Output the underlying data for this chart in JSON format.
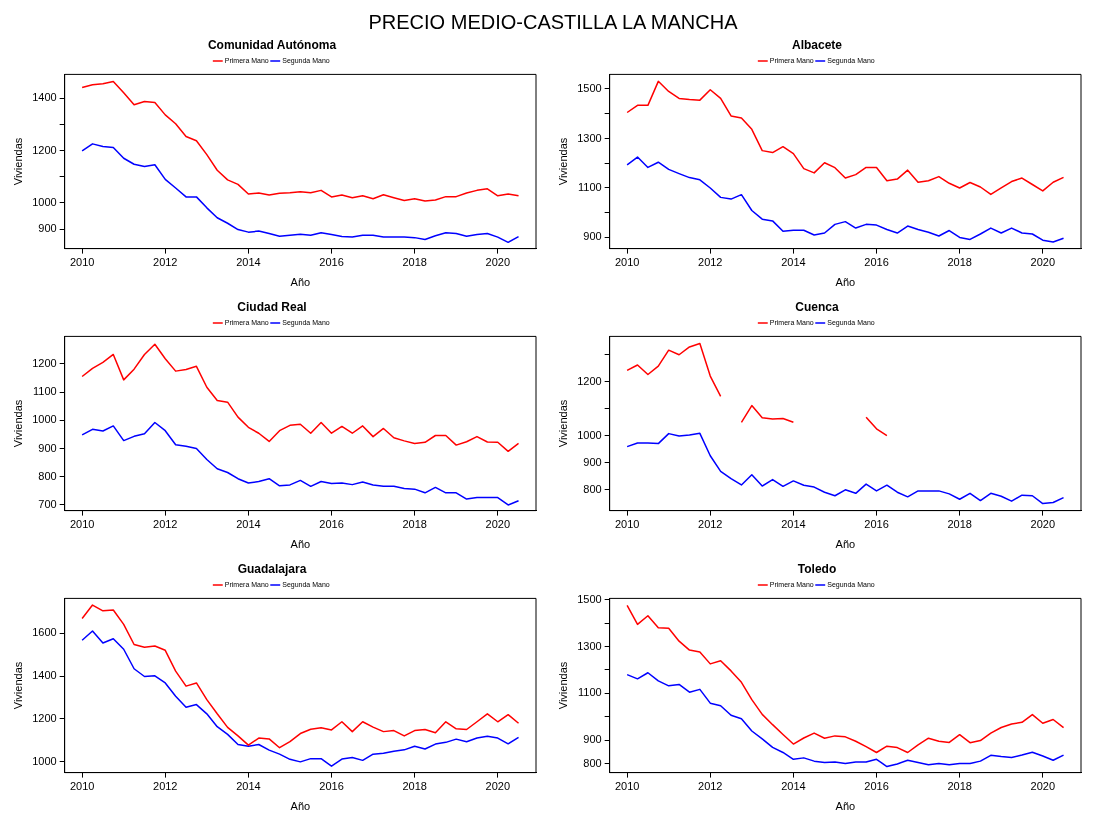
{
  "chart_data": [
    {
      "type": "line",
      "title": "Comunidad Autónoma",
      "xlabel": "Año",
      "ylabel": "Viviendas",
      "annotations": [
        "PRECIO MEDIO-CASTILLA LA MANCHA"
      ],
      "legend": "top",
      "grid": false,
      "line_style": "solid",
      "x": [
        2010,
        2010.25,
        2010.5,
        2010.75,
        2011,
        2011.25,
        2011.5,
        2011.75,
        2012,
        2012.25,
        2012.5,
        2012.75,
        2013,
        2013.25,
        2013.5,
        2013.75,
        2014,
        2014.25,
        2014.5,
        2014.75,
        2015,
        2015.25,
        2015.5,
        2015.75,
        2016,
        2016.25,
        2016.5,
        2016.75,
        2017,
        2017.25,
        2017.5,
        2017.75,
        2018,
        2018.25,
        2018.5,
        2018.75,
        2019,
        2019.25,
        2019.5,
        2019.75,
        2020,
        2020.25,
        2020.5
      ],
      "xlim": [
        2009.58,
        2020.92
      ],
      "xticks": [
        2010,
        2012,
        2014,
        2016,
        2018,
        2020
      ],
      "ylim": [
        825,
        1492
      ],
      "yticks": [
        900,
        1000,
        {
          "value": 1100,
          "label": null
        },
        1200,
        {
          "value": 1300,
          "label": null
        },
        1400
      ],
      "series": [
        {
          "name": "Primera Mano",
          "color": "#ff0000",
          "values": [
            1442,
            1452,
            1456,
            1465,
            1422,
            1376,
            1388,
            1384,
            1337,
            1303,
            1254,
            1238,
            1185,
            1125,
            1088,
            1071,
            1034,
            1038,
            1030,
            1037,
            1039,
            1043,
            1039,
            1048,
            1023,
            1030,
            1020,
            1027,
            1016,
            1031,
            1020,
            1009,
            1016,
            1007,
            1011,
            1024,
            1024,
            1038,
            1048,
            1054,
            1027,
            1034,
            1027
          ]
        },
        {
          "name": "Segunda Mano",
          "color": "#0000ff",
          "values": [
            1199,
            1226,
            1216,
            1212,
            1171,
            1148,
            1139,
            1146,
            1090,
            1057,
            1023,
            1023,
            981,
            943,
            922,
            898,
            888,
            892,
            883,
            872,
            876,
            880,
            876,
            886,
            879,
            871,
            869,
            876,
            876,
            869,
            869,
            869,
            867,
            860,
            874,
            886,
            883,
            872,
            879,
            883,
            869,
            849,
            871
          ]
        }
      ]
    },
    {
      "type": "line",
      "title": "Albacete",
      "xlabel": "Año",
      "ylabel": "Viviendas",
      "legend": "top",
      "grid": false,
      "line_style": "solid",
      "x": [
        2010,
        2010.25,
        2010.5,
        2010.75,
        2011,
        2011.25,
        2011.5,
        2011.75,
        2012,
        2012.25,
        2012.5,
        2012.75,
        2013,
        2013.25,
        2013.5,
        2013.75,
        2014,
        2014.25,
        2014.5,
        2014.75,
        2015,
        2015.25,
        2015.5,
        2015.75,
        2016,
        2016.25,
        2016.5,
        2016.75,
        2017,
        2017.25,
        2017.5,
        2017.75,
        2018,
        2018.25,
        2018.5,
        2018.75,
        2019,
        2019.25,
        2019.5,
        2019.75,
        2020,
        2020.25,
        2020.5
      ],
      "xlim": [
        2009.58,
        2020.92
      ],
      "xticks": [
        2010,
        2012,
        2014,
        2016,
        2018,
        2020
      ],
      "ylim": [
        855,
        1559
      ],
      "yticks": [
        900,
        {
          "value": 1000,
          "label": null
        },
        1100,
        {
          "value": 1200,
          "label": null
        },
        1300,
        {
          "value": 1400,
          "label": null
        },
        1500
      ],
      "series": [
        {
          "name": "Primera Mano",
          "color": "#ff0000",
          "values": [
            1405,
            1434,
            1434,
            1531,
            1490,
            1462,
            1458,
            1455,
            1497,
            1462,
            1391,
            1383,
            1337,
            1251,
            1243,
            1267,
            1239,
            1178,
            1161,
            1202,
            1182,
            1140,
            1154,
            1183,
            1183,
            1129,
            1136,
            1172,
            1123,
            1129,
            1146,
            1119,
            1100,
            1122,
            1104,
            1074,
            1100,
            1126,
            1140,
            1114,
            1088,
            1123,
            1143
          ]
        },
        {
          "name": "Segunda Mano",
          "color": "#0000ff",
          "values": [
            1193,
            1225,
            1183,
            1204,
            1175,
            1158,
            1142,
            1133,
            1100,
            1062,
            1055,
            1073,
            1009,
            974,
            967,
            925,
            929,
            929,
            910,
            918,
            953,
            964,
            938,
            953,
            950,
            932,
            918,
            946,
            932,
            921,
            906,
            928,
            900,
            892,
            914,
            938,
            918,
            938,
            918,
            914,
            889,
            882,
            897
          ]
        }
      ]
    },
    {
      "type": "line",
      "title": "Ciudad Real",
      "xlabel": "Año",
      "ylabel": "Viviendas",
      "legend": "top",
      "grid": false,
      "line_style": "solid",
      "x": [
        2010,
        2010.25,
        2010.5,
        2010.75,
        2011,
        2011.25,
        2011.5,
        2011.75,
        2012,
        2012.25,
        2012.5,
        2012.75,
        2013,
        2013.25,
        2013.5,
        2013.75,
        2014,
        2014.25,
        2014.5,
        2014.75,
        2015,
        2015.25,
        2015.5,
        2015.75,
        2016,
        2016.25,
        2016.5,
        2016.75,
        2017,
        2017.25,
        2017.5,
        2017.75,
        2018,
        2018.25,
        2018.5,
        2018.75,
        2019,
        2019.25,
        2019.5,
        2019.75,
        2020,
        2020.25,
        2020.5
      ],
      "xlim": [
        2009.58,
        2020.92
      ],
      "xticks": [
        2010,
        2012,
        2014,
        2016,
        2018,
        2020
      ],
      "ylim": [
        680,
        1297
      ],
      "yticks": [
        700,
        800,
        900,
        1000,
        1100,
        1200
      ],
      "series": [
        {
          "name": "Primera Mano",
          "color": "#ff0000",
          "values": [
            1155,
            1184,
            1205,
            1233,
            1143,
            1181,
            1233,
            1269,
            1218,
            1174,
            1180,
            1191,
            1117,
            1070,
            1064,
            1011,
            975,
            954,
            925,
            963,
            982,
            986,
            954,
            992,
            954,
            978,
            954,
            980,
            942,
            971,
            938,
            927,
            918,
            922,
            946,
            946,
            912,
            924,
            942,
            923,
            922,
            890,
            918
          ]
        },
        {
          "name": "Segunda Mano",
          "color": "#0000ff",
          "values": [
            948,
            968,
            962,
            980,
            928,
            943,
            952,
            992,
            963,
            913,
            908,
            900,
            861,
            828,
            815,
            793,
            778,
            783,
            793,
            768,
            771,
            787,
            766,
            783,
            776,
            778,
            772,
            781,
            771,
            766,
            766,
            758,
            756,
            743,
            762,
            743,
            743,
            721,
            726,
            726,
            726,
            700,
            715
          ]
        }
      ]
    },
    {
      "type": "line",
      "title": "Cuenca",
      "xlabel": "Año",
      "ylabel": "Viviendas",
      "legend": "top",
      "grid": false,
      "line_style": "solid",
      "x": [
        2010,
        2010.25,
        2010.5,
        2010.75,
        2011,
        2011.25,
        2011.5,
        2011.75,
        2012,
        2012.25,
        2012.5,
        2012.75,
        2013,
        2013.25,
        2013.5,
        2013.75,
        2014,
        2014.25,
        2014.5,
        2014.75,
        2015,
        2015.25,
        2015.5,
        2015.75,
        2016,
        2016.25,
        2016.5,
        2016.75,
        2017,
        2017.25,
        2017.5,
        2017.75,
        2018,
        2018.25,
        2018.5,
        2018.75,
        2019,
        2019.25,
        2019.5,
        2019.75,
        2020,
        2020.25,
        2020.5
      ],
      "xlim": [
        2009.58,
        2020.92
      ],
      "xticks": [
        2010,
        2012,
        2014,
        2016,
        2018,
        2020
      ],
      "ylim": [
        723,
        1368
      ],
      "yticks": [
        800,
        900,
        1000,
        {
          "value": 1100,
          "label": null
        },
        1200,
        {
          "value": 1300,
          "label": null
        }
      ],
      "series": [
        {
          "name": "Primera Mano",
          "color": "#ff0000",
          "values": [
            1242,
            1262,
            1227,
            1258,
            1317,
            1300,
            1329,
            1342,
            1221,
            1146,
            null,
            1050,
            1112,
            1067,
            1062,
            1064,
            1050,
            null,
            null,
            null,
            null,
            null,
            null,
            1069,
            1026,
            1001,
            null,
            null,
            null,
            null,
            null,
            null,
            null,
            null,
            null,
            null,
            null,
            null,
            null,
            null,
            null,
            null,
            null
          ]
        },
        {
          "name": "Segunda Mano",
          "color": "#0000ff",
          "values": [
            960,
            973,
            973,
            971,
            1008,
            999,
            1003,
            1009,
            926,
            868,
            841,
            818,
            856,
            814,
            838,
            813,
            833,
            817,
            810,
            791,
            778,
            800,
            787,
            821,
            796,
            817,
            791,
            774,
            796,
            796,
            796,
            785,
            765,
            787,
            760,
            787,
            776,
            758,
            780,
            778,
            749,
            753,
            771
          ]
        }
      ]
    },
    {
      "type": "line",
      "title": "Guadalajara",
      "xlabel": "Año",
      "ylabel": "Viviendas",
      "legend": "top",
      "grid": false,
      "line_style": "solid",
      "x": [
        2010,
        2010.25,
        2010.5,
        2010.75,
        2011,
        2011.25,
        2011.5,
        2011.75,
        2012,
        2012.25,
        2012.5,
        2012.75,
        2013,
        2013.25,
        2013.5,
        2013.75,
        2014,
        2014.25,
        2014.5,
        2014.75,
        2015,
        2015.25,
        2015.5,
        2015.75,
        2016,
        2016.25,
        2016.5,
        2016.75,
        2017,
        2017.25,
        2017.5,
        2017.75,
        2018,
        2018.25,
        2018.5,
        2018.75,
        2019,
        2019.25,
        2019.5,
        2019.75,
        2020,
        2020.25,
        2020.5
      ],
      "xlim": [
        2009.58,
        2020.92
      ],
      "xticks": [
        2010,
        2012,
        2014,
        2016,
        2018,
        2020
      ],
      "ylim": [
        950,
        1762
      ],
      "yticks": [
        1000,
        1200,
        1400,
        1600
      ],
      "series": [
        {
          "name": "Primera Mano",
          "color": "#ff0000",
          "values": [
            1668,
            1731,
            1704,
            1708,
            1641,
            1547,
            1534,
            1540,
            1520,
            1423,
            1353,
            1368,
            1290,
            1224,
            1161,
            1121,
            1078,
            1111,
            1107,
            1066,
            1094,
            1132,
            1152,
            1159,
            1149,
            1187,
            1141,
            1187,
            1162,
            1141,
            1146,
            1121,
            1146,
            1151,
            1136,
            1187,
            1154,
            1151,
            1187,
            1224,
            1187,
            1220,
            1180
          ]
        },
        {
          "name": "Segunda Mano",
          "color": "#0000ff",
          "values": [
            1567,
            1610,
            1554,
            1574,
            1525,
            1434,
            1398,
            1401,
            1368,
            1306,
            1255,
            1267,
            1224,
            1164,
            1128,
            1081,
            1073,
            1081,
            1055,
            1036,
            1012,
            1000,
            1015,
            1015,
            980,
            1013,
            1020,
            1007,
            1036,
            1040,
            1050,
            1056,
            1073,
            1060,
            1083,
            1091,
            1106,
            1094,
            1111,
            1119,
            1111,
            1084,
            1114
          ]
        }
      ]
    },
    {
      "type": "line",
      "title": "Toledo",
      "xlabel": "Año",
      "ylabel": "Viviendas",
      "legend": "top",
      "grid": false,
      "line_style": "solid",
      "x": [
        2010,
        2010.25,
        2010.5,
        2010.75,
        2011,
        2011.25,
        2011.5,
        2011.75,
        2012,
        2012.25,
        2012.5,
        2012.75,
        2013,
        2013.25,
        2013.5,
        2013.75,
        2014,
        2014.25,
        2014.5,
        2014.75,
        2015,
        2015.25,
        2015.5,
        2015.75,
        2016,
        2016.25,
        2016.5,
        2016.75,
        2017,
        2017.25,
        2017.5,
        2017.75,
        2018,
        2018.25,
        2018.5,
        2018.75,
        2019,
        2019.25,
        2019.5,
        2019.75,
        2020,
        2020.25,
        2020.5
      ],
      "xlim": [
        2009.58,
        2020.92
      ],
      "xticks": [
        2010,
        2012,
        2014,
        2016,
        2018,
        2020
      ],
      "ylim": [
        761,
        1506
      ],
      "yticks": [
        800,
        900,
        {
          "value": 1000,
          "label": null
        },
        1100,
        {
          "value": 1200,
          "label": null
        },
        1300,
        {
          "value": 1400,
          "label": null
        },
        1500
      ],
      "series": [
        {
          "name": "Primera Mano",
          "color": "#ff0000",
          "values": [
            1476,
            1395,
            1432,
            1380,
            1378,
            1323,
            1285,
            1277,
            1226,
            1239,
            1196,
            1147,
            1073,
            1010,
            966,
            924,
            883,
            909,
            930,
            908,
            918,
            914,
            895,
            872,
            847,
            874,
            868,
            847,
            880,
            908,
            895,
            890,
            923,
            889,
            898,
            930,
            954,
            969,
            976,
            1009,
            972,
            988,
            953
          ]
        },
        {
          "name": "Segunda Mano",
          "color": "#0000ff",
          "values": [
            1180,
            1162,
            1188,
            1153,
            1132,
            1138,
            1105,
            1117,
            1058,
            1047,
            1006,
            991,
            939,
            905,
            869,
            847,
            818,
            824,
            810,
            804,
            806,
            800,
            806,
            806,
            818,
            787,
            798,
            814,
            804,
            795,
            800,
            795,
            800,
            800,
            810,
            835,
            830,
            826,
            836,
            848,
            832,
            814,
            836
          ]
        }
      ]
    }
  ]
}
